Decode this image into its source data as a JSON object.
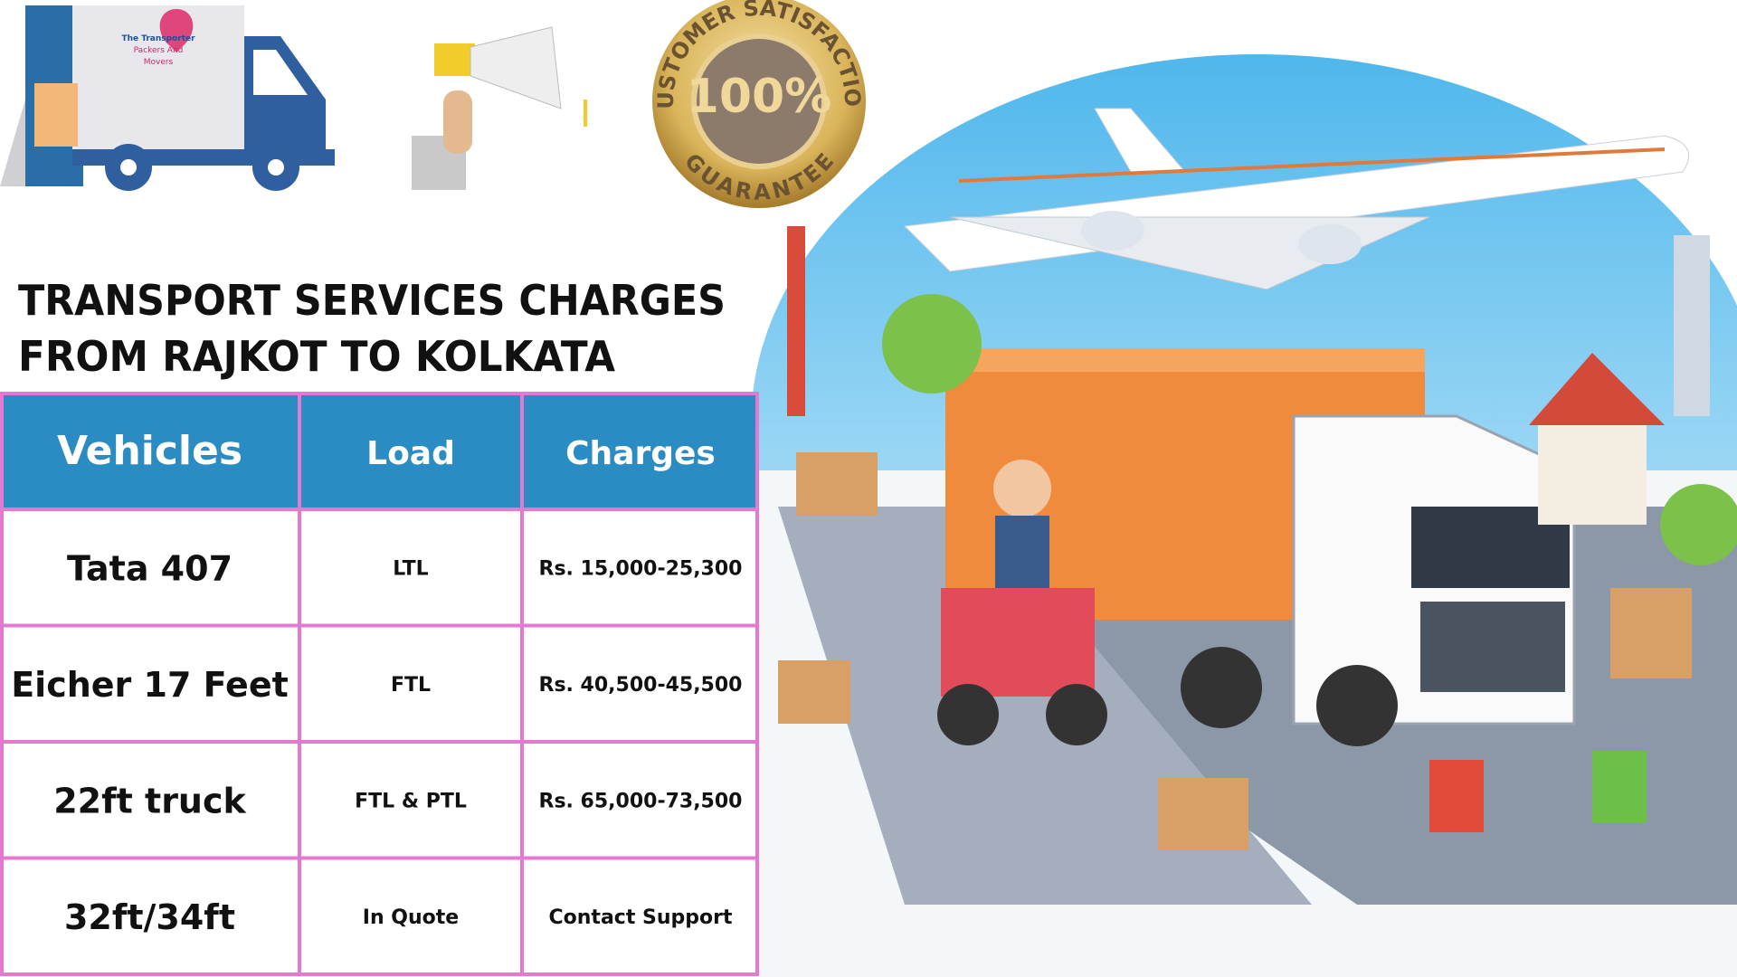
{
  "logo": {
    "lines": [
      "The Transporter",
      "Packers And",
      "Movers"
    ]
  },
  "badge": {
    "top": "CUSTOMER SATISFACTION",
    "center": "100%",
    "bottom": "GUARANTEE"
  },
  "title": [
    "TRANSPORT SERVICES CHARGES",
    "FROM RAJKOT TO KOLKATA"
  ],
  "table": {
    "header": [
      "Vehicles",
      "Load",
      "Charges"
    ],
    "rows": [
      [
        "Tata 407",
        "LTL",
        "Rs. 15,000-25,300"
      ],
      [
        "Eicher 17 Feet",
        "FTL",
        "Rs. 40,500-45,500"
      ],
      [
        "22ft truck",
        "FTL & PTL",
        "Rs. 65,000-73,500"
      ],
      [
        "32ft/34ft",
        "In Quote",
        "Contact Support"
      ]
    ]
  }
}
